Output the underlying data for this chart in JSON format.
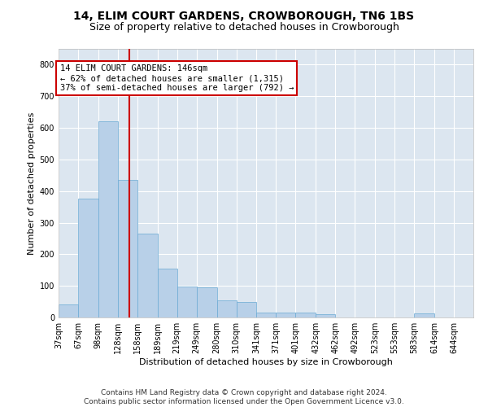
{
  "title": "14, ELIM COURT GARDENS, CROWBOROUGH, TN6 1BS",
  "subtitle": "Size of property relative to detached houses in Crowborough",
  "xlabel": "Distribution of detached houses by size in Crowborough",
  "ylabel": "Number of detached properties",
  "bar_color": "#b8d0e8",
  "bar_edge_color": "#6aaad4",
  "background_color": "#dce6f0",
  "grid_color": "#ffffff",
  "annotation_box_color": "#cc0000",
  "annotation_line_color": "#cc0000",
  "annotation_text": "14 ELIM COURT GARDENS: 146sqm\n← 62% of detached houses are smaller (1,315)\n37% of semi-detached houses are larger (792) →",
  "property_size": 146,
  "bin_edges": [
    37,
    67,
    98,
    128,
    158,
    189,
    219,
    249,
    280,
    310,
    341,
    371,
    401,
    432,
    462,
    492,
    523,
    553,
    583,
    614,
    644
  ],
  "bin_labels": [
    "37sqm",
    "67sqm",
    "98sqm",
    "128sqm",
    "158sqm",
    "189sqm",
    "219sqm",
    "249sqm",
    "280sqm",
    "310sqm",
    "341sqm",
    "371sqm",
    "401sqm",
    "432sqm",
    "462sqm",
    "492sqm",
    "523sqm",
    "553sqm",
    "583sqm",
    "614sqm",
    "644sqm"
  ],
  "bar_heights": [
    40,
    375,
    620,
    435,
    265,
    155,
    98,
    95,
    55,
    50,
    15,
    15,
    15,
    10,
    0,
    0,
    0,
    0,
    12,
    0,
    0
  ],
  "ylim": [
    0,
    850
  ],
  "yticks": [
    0,
    100,
    200,
    300,
    400,
    500,
    600,
    700,
    800
  ],
  "footer": "Contains HM Land Registry data © Crown copyright and database right 2024.\nContains public sector information licensed under the Open Government Licence v3.0.",
  "title_fontsize": 10,
  "subtitle_fontsize": 9,
  "annotation_fontsize": 7.5,
  "footer_fontsize": 6.5,
  "ylabel_fontsize": 8,
  "xlabel_fontsize": 8,
  "tick_fontsize": 7
}
